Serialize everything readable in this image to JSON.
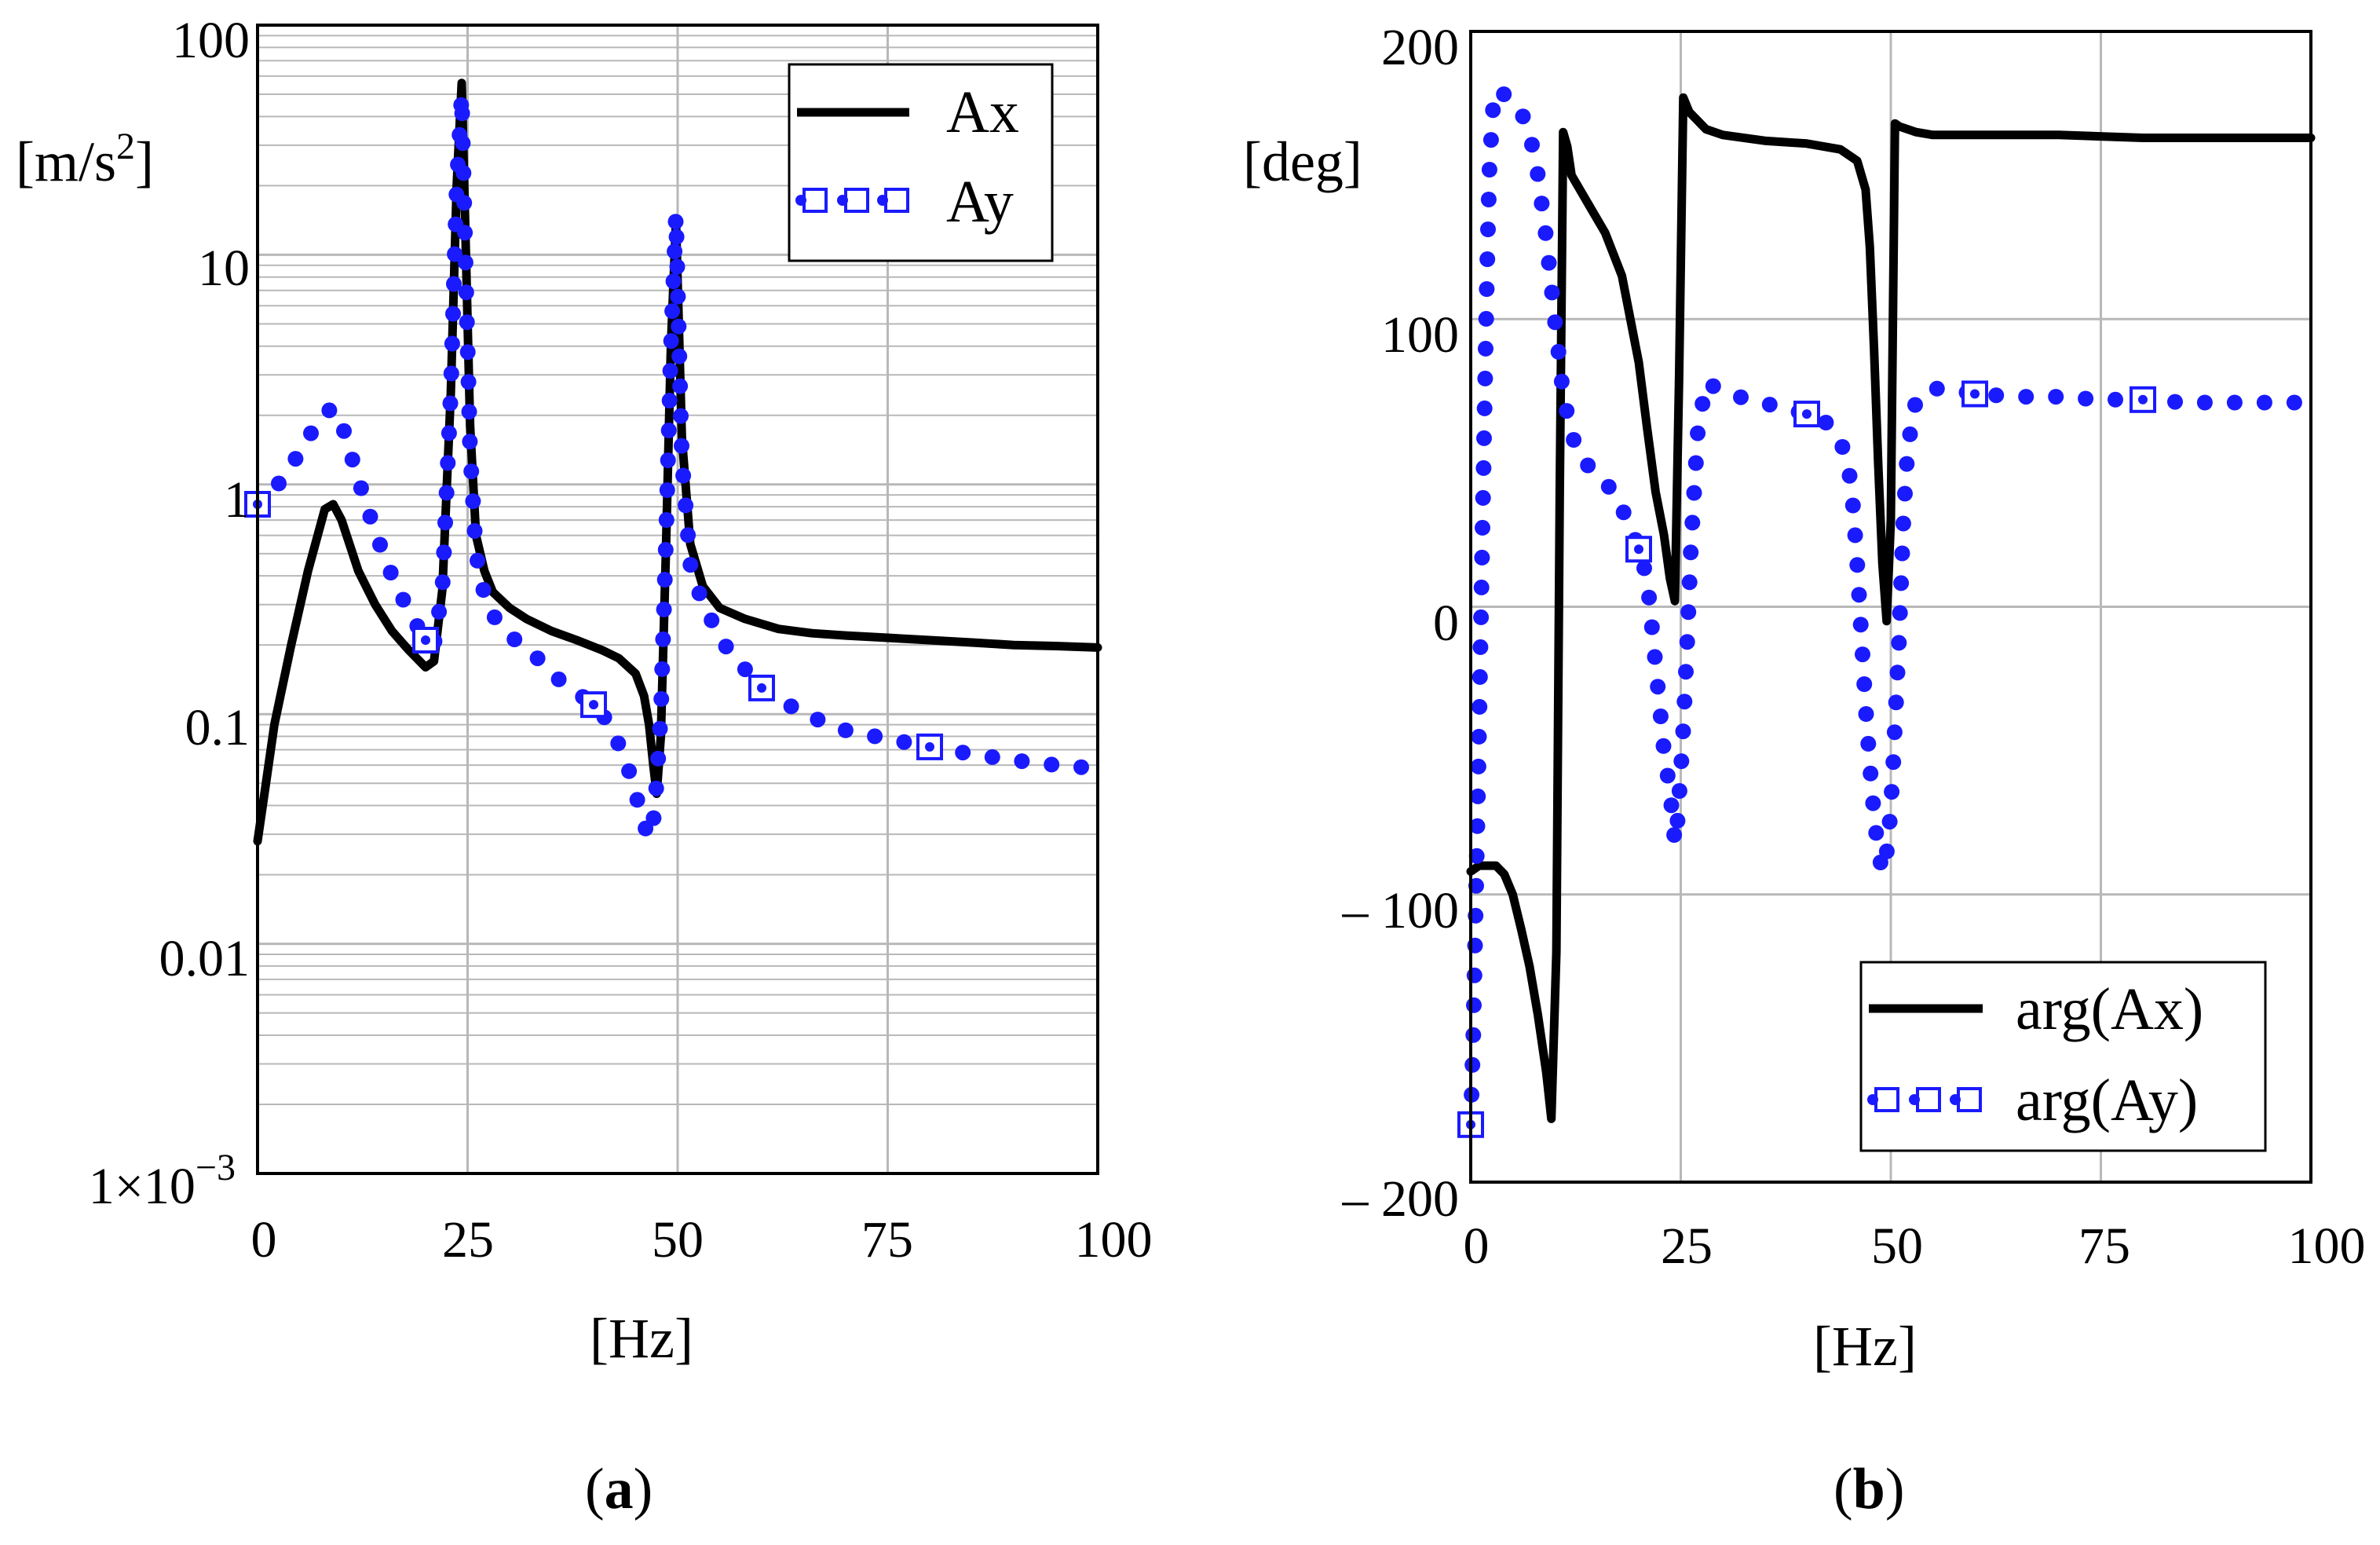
{
  "colors": {
    "ax": "#000000",
    "ay": "#1a1aff",
    "grid": "#b8b8b8",
    "frame": "#000000"
  },
  "chart_data": [
    {
      "type": "line",
      "panel": "a",
      "caption_letter": "a",
      "caption_open": "(",
      "caption_close": ")",
      "xlabel": "[Hz]",
      "ylabel": "[m/s",
      "ylabel_sup": "2",
      "ylabel_close": "]",
      "yscale": "log",
      "xlim": [
        0,
        100
      ],
      "ylim": [
        0.001,
        100
      ],
      "xticks": [
        0,
        25,
        50,
        75,
        100
      ],
      "xtick_labels": [
        "0",
        "25",
        "50",
        "75",
        "100"
      ],
      "yticks": [
        100,
        10,
        1,
        0.1,
        0.01
      ],
      "ytick_labels": [
        "100",
        "10",
        "1",
        "0.1",
        "0.01"
      ],
      "ytick_bottom_label": {
        "base": "1×10",
        "exp": "−3"
      },
      "legend_position": "top-right",
      "series": [
        {
          "name": "Ax",
          "style": "solid",
          "x": [
            0,
            1,
            2,
            4,
            6,
            8,
            9,
            10,
            12,
            14,
            16,
            18,
            20,
            21,
            22,
            23,
            23.7,
            24.3,
            24.8,
            25.3,
            26,
            27,
            28,
            30,
            32,
            35,
            38,
            41,
            43,
            45,
            46,
            46.6,
            47.1,
            47.5,
            48,
            48.6,
            49.2,
            49.8,
            50.5,
            51.5,
            53,
            55,
            58,
            62,
            66,
            70,
            75,
            80,
            85,
            90,
            95,
            100
          ],
          "y": [
            0.028,
            0.05,
            0.09,
            0.2,
            0.42,
            0.78,
            0.82,
            0.7,
            0.42,
            0.3,
            0.23,
            0.19,
            0.16,
            0.17,
            0.35,
            2.5,
            20,
            56,
            10,
            1.8,
            0.6,
            0.42,
            0.34,
            0.29,
            0.26,
            0.23,
            0.21,
            0.19,
            0.175,
            0.15,
            0.12,
            0.09,
            0.06,
            0.045,
            0.08,
            0.5,
            4,
            14,
            1.6,
            0.55,
            0.36,
            0.29,
            0.26,
            0.235,
            0.225,
            0.22,
            0.215,
            0.21,
            0.205,
            0.2,
            0.198,
            0.195
          ]
        },
        {
          "name": "Ay",
          "style": "dotted-with-square-markers",
          "x": [
            0,
            2,
            4,
            6,
            8,
            9,
            10,
            12,
            14,
            16,
            18,
            20,
            21,
            22,
            23,
            23.7,
            24.3,
            24.8,
            25.3,
            26,
            27,
            28,
            30,
            33,
            36,
            40,
            42,
            44,
            45,
            46,
            46.6,
            47.1,
            47.5,
            48,
            48.6,
            49.2,
            49.8,
            50.5,
            51.5,
            53,
            56,
            60,
            65,
            70,
            75,
            80,
            85,
            90,
            95,
            100
          ],
          "y": [
            0.82,
            0.95,
            1.2,
            1.6,
            2.05,
            2.15,
            1.85,
            1.05,
            0.62,
            0.4,
            0.28,
            0.21,
            0.2,
            0.35,
            2.5,
            20,
            50,
            8,
            1.4,
            0.5,
            0.33,
            0.27,
            0.22,
            0.18,
            0.14,
            0.11,
            0.09,
            0.06,
            0.045,
            0.033,
            0.029,
            0.034,
            0.05,
            0.1,
            0.55,
            4,
            15,
            1.3,
            0.45,
            0.3,
            0.19,
            0.13,
            0.1,
            0.085,
            0.078,
            0.072,
            0.067,
            0.063,
            0.06,
            0.058
          ]
        }
      ]
    },
    {
      "type": "line",
      "panel": "b",
      "caption_letter": "b",
      "caption_open": "(",
      "caption_close": ")",
      "xlabel": "[Hz]",
      "ylabel": "[deg]",
      "yscale": "linear",
      "xlim": [
        0,
        100
      ],
      "ylim": [
        -200,
        200
      ],
      "xticks": [
        0,
        25,
        50,
        75,
        100
      ],
      "xtick_labels": [
        "0",
        "25",
        "50",
        "75",
        "100"
      ],
      "yticks": [
        200,
        100,
        0,
        -100,
        -200
      ],
      "ytick_labels": [
        "200",
        "100",
        "0",
        "– 100",
        "– 200"
      ],
      "legend_position": "bottom-right",
      "series": [
        {
          "name": "arg(Ax)",
          "style": "solid",
          "x": [
            0,
            1,
            2,
            3,
            4,
            5,
            6,
            7,
            8,
            9,
            9.6,
            10.2,
            10.6,
            11,
            11.5,
            12,
            14,
            16,
            18,
            20,
            21,
            22,
            23,
            23.7,
            24.3,
            24.8,
            25.3,
            26,
            28,
            30,
            35,
            40,
            44,
            46,
            47,
            47.5,
            48,
            48.5,
            49,
            49.5,
            50,
            50.5,
            51,
            53,
            55,
            60,
            70,
            80,
            90,
            100
          ],
          "y": [
            -92,
            -90,
            -90,
            -90,
            -93,
            -100,
            -112,
            -125,
            -142,
            -162,
            -178,
            -120,
            40,
            165,
            160,
            150,
            140,
            130,
            115,
            85,
            62,
            40,
            25,
            10,
            2,
            80,
            177,
            172,
            166,
            164,
            162,
            161,
            159,
            155,
            145,
            125,
            90,
            50,
            15,
            -5,
            30,
            168,
            167,
            165,
            164,
            164,
            164,
            163,
            163,
            163
          ]
        },
        {
          "name": "arg(Ay)",
          "style": "dotted-with-square-markers",
          "x": [
            0,
            0.15,
            0.3,
            0.5,
            0.7,
            0.9,
            1.1,
            1.3,
            1.6,
            1.9,
            2.2,
            2.6,
            3.2,
            4,
            5,
            6,
            7,
            8,
            9,
            10,
            11,
            12,
            13,
            15,
            17,
            19,
            20,
            21,
            21.5,
            22,
            22.5,
            23,
            23.5,
            24,
            24.3,
            24.6,
            24.9,
            25.2,
            25.5,
            25.8,
            26.2,
            27,
            28,
            30,
            33,
            36,
            40,
            42,
            44,
            45,
            45.5,
            46,
            46.5,
            47,
            47.5,
            48,
            48.5,
            49,
            49.4,
            49.8,
            50.2,
            50.6,
            51,
            51.5,
            52,
            53,
            55,
            58,
            60,
            65,
            70,
            75,
            80,
            85,
            90,
            95,
            100
          ],
          "y": [
            -180,
            -165,
            -150,
            -120,
            -90,
            -60,
            -25,
            10,
            60,
            110,
            150,
            172,
            180,
            178,
            176,
            172,
            165,
            150,
            128,
            100,
            74,
            60,
            52,
            46,
            40,
            28,
            20,
            10,
            -5,
            -20,
            -35,
            -50,
            -60,
            -72,
            -82,
            -75,
            -62,
            -48,
            -30,
            -10,
            20,
            60,
            78,
            75,
            72,
            70,
            67,
            65,
            58,
            48,
            35,
            15,
            -10,
            -35,
            -55,
            -72,
            -85,
            -92,
            -88,
            -78,
            -60,
            -35,
            -10,
            30,
            55,
            72,
            76,
            75,
            74,
            73,
            73,
            72,
            72,
            71,
            71,
            71,
            71
          ]
        }
      ]
    }
  ]
}
